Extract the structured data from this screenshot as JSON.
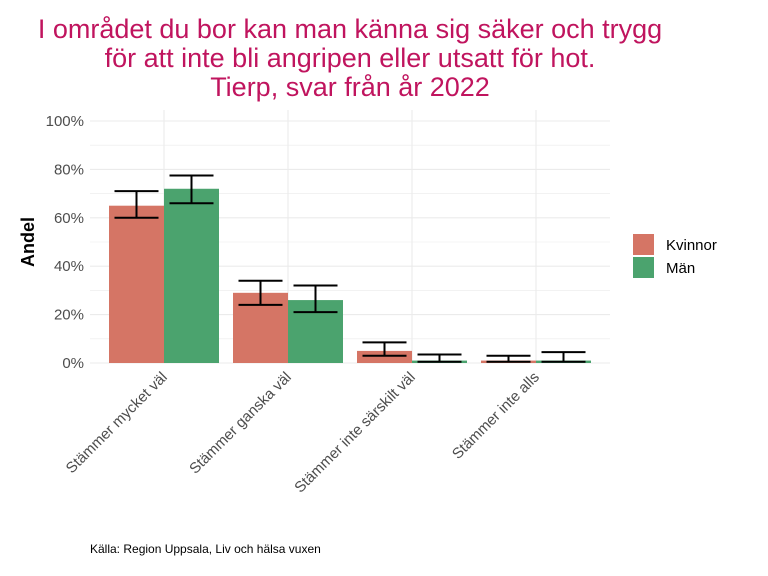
{
  "chart_data": {
    "type": "bar",
    "title": [
      "I området du bor kan man känna sig säker och trygg",
      "för att inte bli angripen eller utsatt för hot.",
      "Tierp, svar från år 2022"
    ],
    "ylabel": "Andel",
    "xlabel": "",
    "ylim": [
      0,
      100
    ],
    "yticks": [
      "0%",
      "20%",
      "40%",
      "60%",
      "80%",
      "100%"
    ],
    "categories": [
      "Stämmer mycket väl",
      "Stämmer ganska väl",
      "Stämmer inte särskilt väl",
      "Stämmer inte alls"
    ],
    "series": [
      {
        "name": "Kvinnor",
        "color": "#D57565",
        "values": [
          65,
          29,
          5,
          1
        ],
        "lower": [
          60,
          24,
          3,
          0.5
        ],
        "upper": [
          71,
          34,
          8.5,
          3
        ]
      },
      {
        "name": "Män",
        "color": "#4BA36E",
        "values": [
          72,
          26,
          1,
          1
        ],
        "lower": [
          66,
          21,
          0.5,
          0.5
        ],
        "upper": [
          77.5,
          32,
          3.5,
          4.5
        ]
      }
    ],
    "grid": true,
    "legend": "right",
    "caption": "Källa: Region Uppsala, Liv och hälsa vuxen",
    "title_color": "#C0145E"
  }
}
